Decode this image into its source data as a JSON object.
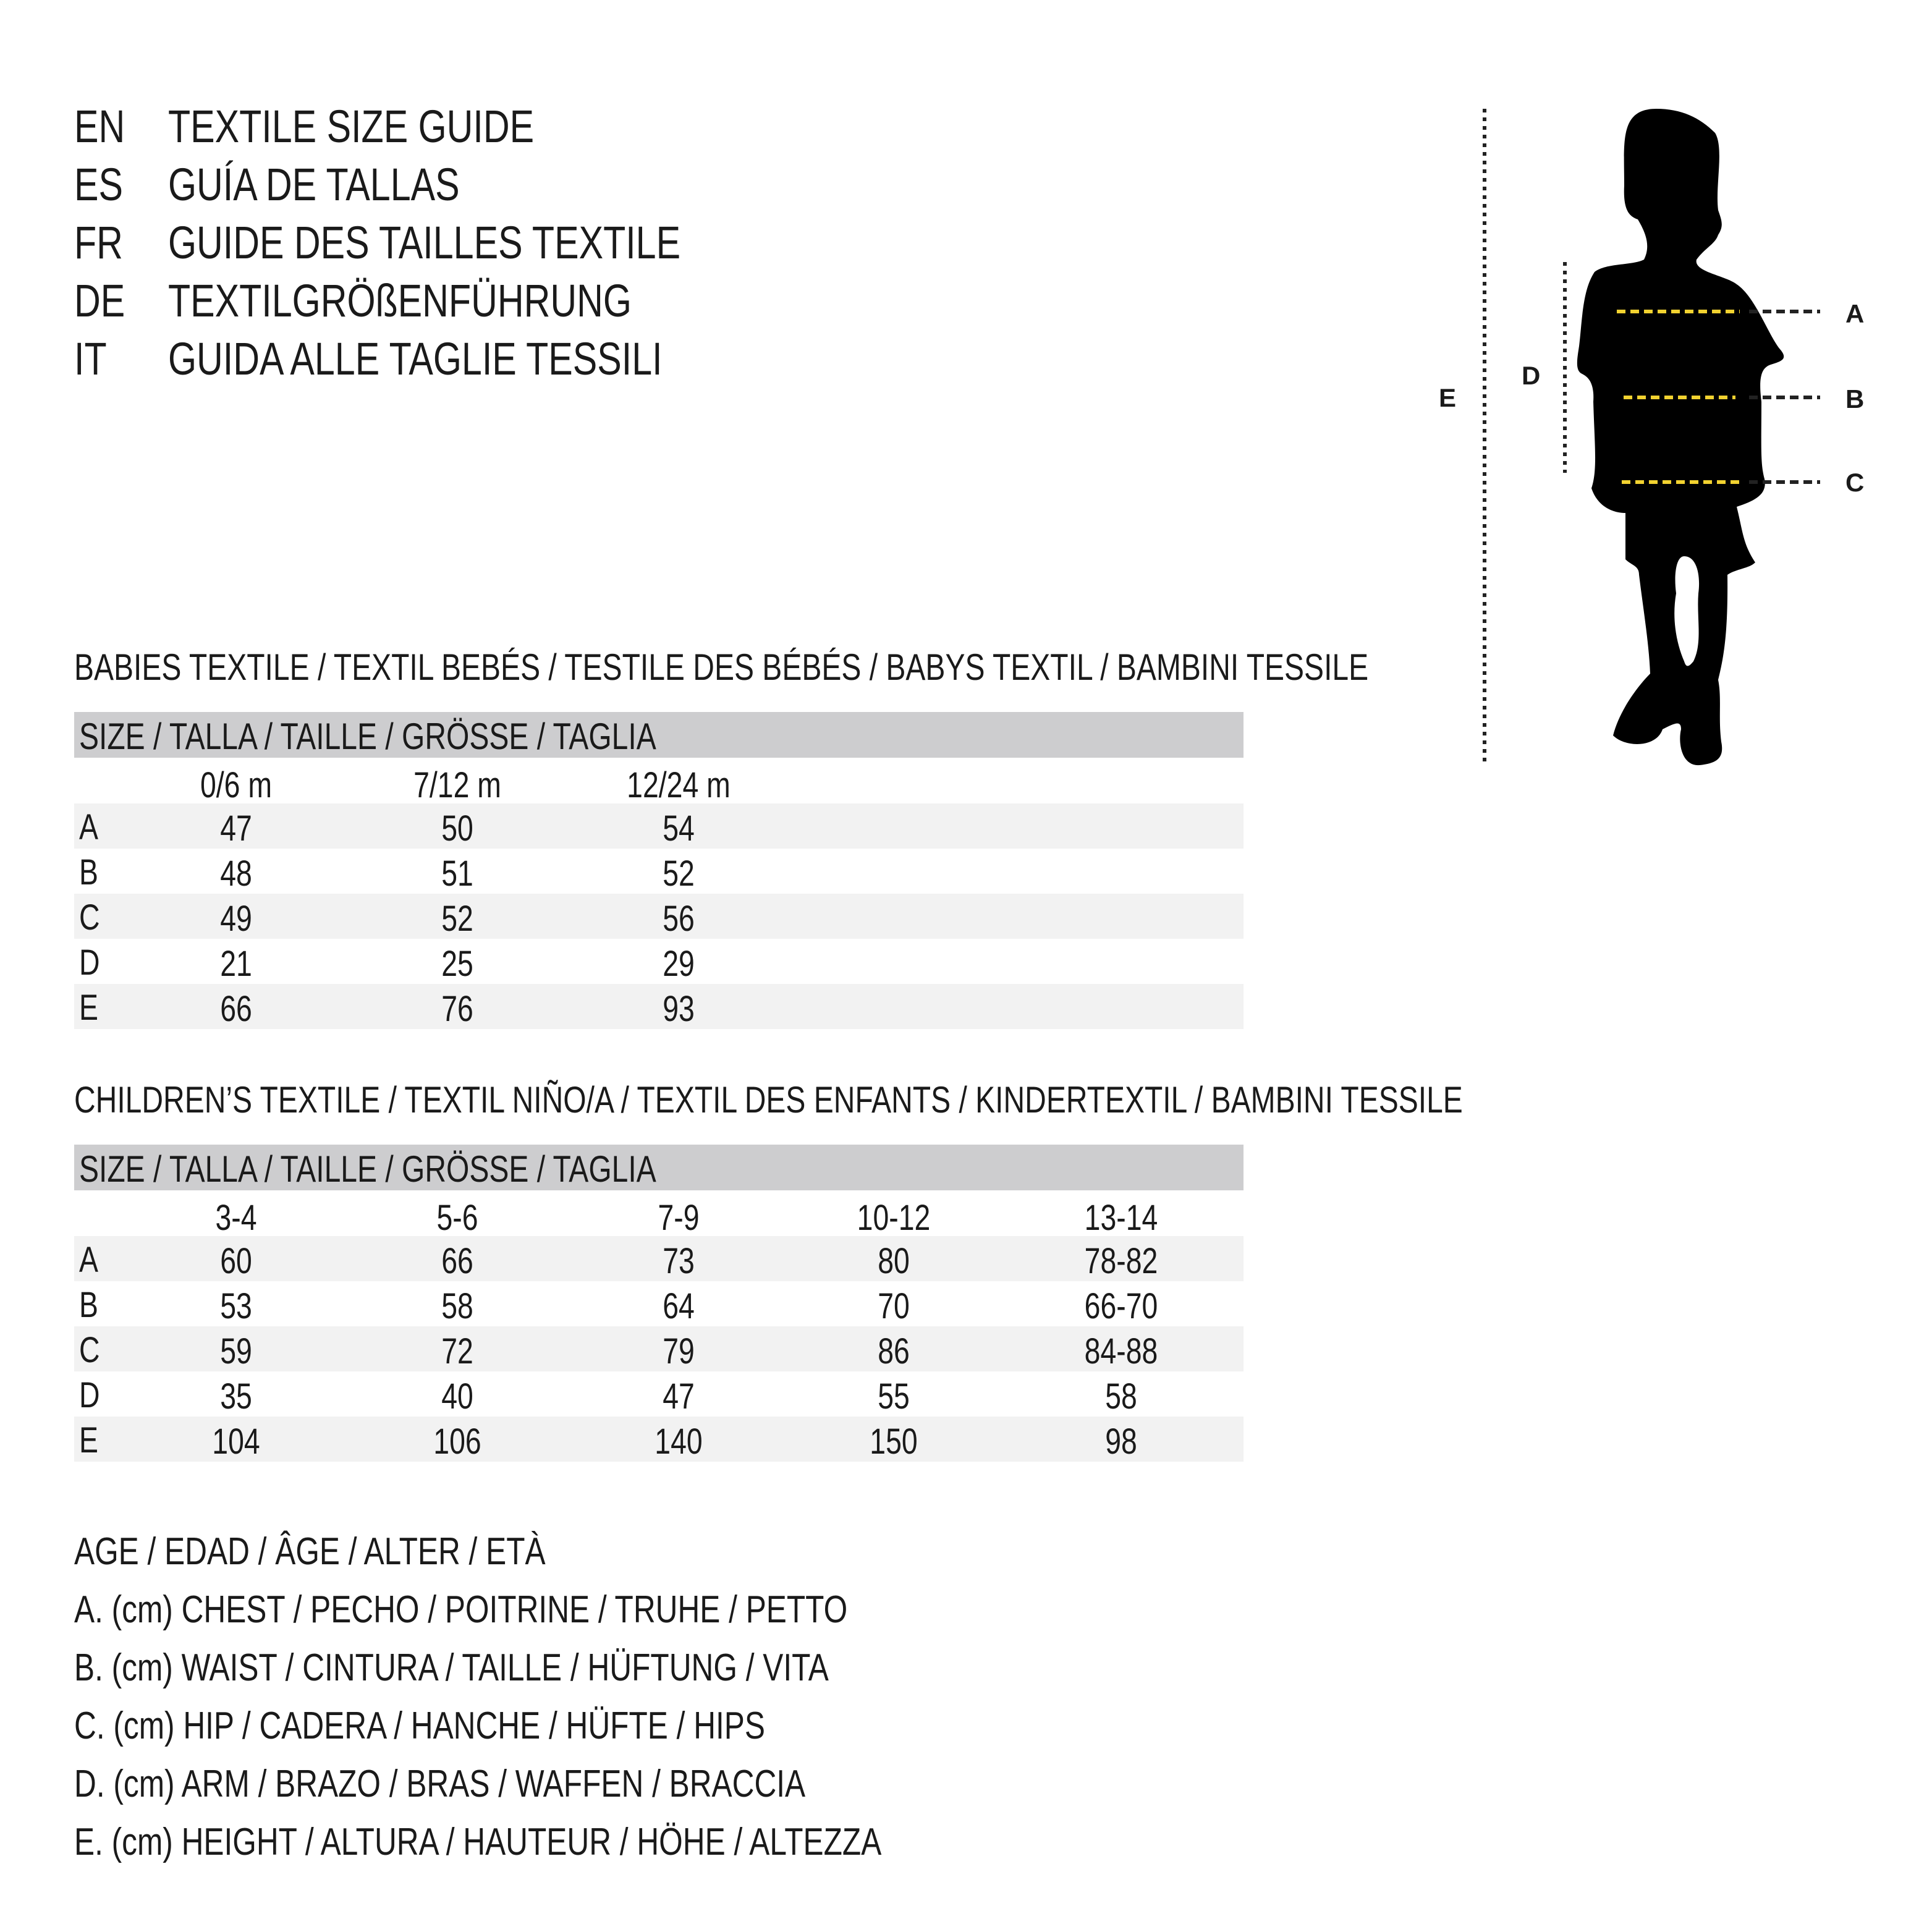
{
  "titles": [
    {
      "code": "EN",
      "text": "TEXTILE SIZE GUIDE"
    },
    {
      "code": "ES",
      "text": "GUÍA DE TALLAS"
    },
    {
      "code": "FR",
      "text": "GUIDE DES TAILLES TEXTILE"
    },
    {
      "code": "DE",
      "text": "TEXTILGRÖßENFÜHRUNG"
    },
    {
      "code": "IT",
      "text": "GUIDA ALLE TAGLIE TESSILI"
    }
  ],
  "babies": {
    "heading": "BABIES TEXTILE / TEXTIL BEBÉS / TESTILE DES BÉBÉS / BABYS TEXTIL / BAMBINI TESSILE",
    "size_header": "SIZE / TALLA / TAILLE / GRÖSSE / TAGLIA",
    "columns": [
      "0/6 m",
      "7/12 m",
      "12/24 m"
    ],
    "rows": [
      {
        "label": "A",
        "values": [
          "47",
          "50",
          "54"
        ]
      },
      {
        "label": "B",
        "values": [
          "48",
          "51",
          "52"
        ]
      },
      {
        "label": "C",
        "values": [
          "49",
          "52",
          "56"
        ]
      },
      {
        "label": "D",
        "values": [
          "21",
          "25",
          "29"
        ]
      },
      {
        "label": "E",
        "values": [
          "66",
          "76",
          "93"
        ]
      }
    ]
  },
  "children": {
    "heading": "CHILDREN’S TEXTILE / TEXTIL NIÑO/A / TEXTIL DES ENFANTS / KINDERTEXTIL / BAMBINI TESSILE",
    "size_header": "SIZE / TALLA / TAILLE / GRÖSSE / TAGLIA",
    "columns": [
      "3-4",
      "5-6",
      "7-9",
      "10-12",
      "13-14"
    ],
    "rows": [
      {
        "label": "A",
        "values": [
          "60",
          "66",
          "73",
          "80",
          "78-82"
        ]
      },
      {
        "label": "B",
        "values": [
          "53",
          "58",
          "64",
          "70",
          "66-70"
        ]
      },
      {
        "label": "C",
        "values": [
          "59",
          "72",
          "79",
          "86",
          "84-88"
        ]
      },
      {
        "label": "D",
        "values": [
          "35",
          "40",
          "47",
          "55",
          "58"
        ]
      },
      {
        "label": "E",
        "values": [
          "104",
          "106",
          "140",
          "150",
          "98"
        ]
      }
    ]
  },
  "legend": [
    "AGE / EDAD / ÂGE / ALTER / ETÀ",
    "A. (cm) CHEST / PECHO / POITRINE / TRUHE / PETTO",
    "B. (cm) WAIST / CINTURA / TAILLE / HÜFTUNG / VITA",
    "C. (cm) HIP / CADERA / HANCHE / HÜFTE / HIPS",
    "D. (cm) ARM / BRAZO / BRAS / WAFFEN / BRACCIA",
    "E. (cm) HEIGHT / ALTURA / HAUTEUR / HÖHE / ALTEZZA"
  ],
  "figure": {
    "labels": {
      "a": "A",
      "b": "B",
      "c": "C",
      "d": "D",
      "e": "E"
    },
    "measure_line_color": "#f2d230",
    "silhouette_color": "#000000"
  }
}
